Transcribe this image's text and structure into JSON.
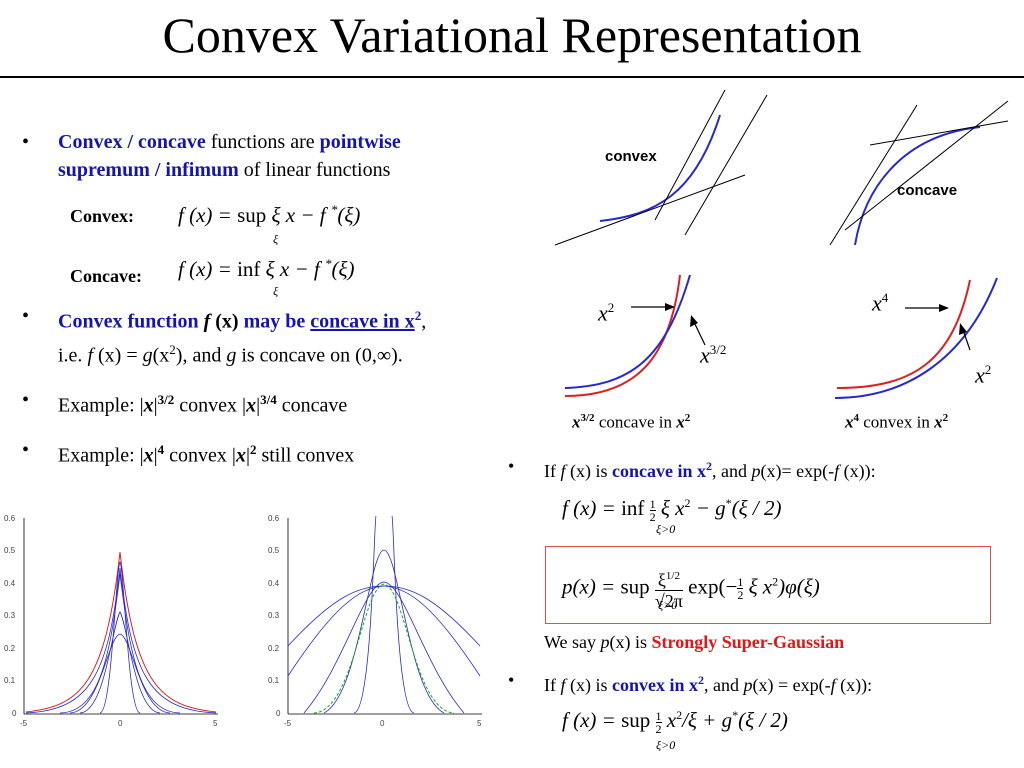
{
  "title": "Convex Variational Representation",
  "bullet1": {
    "part1": "Convex / concave",
    "part2": " functions are ",
    "part3": "pointwise",
    "part4": "supremum / infimum",
    "part5": " of linear functions"
  },
  "eq_convex": {
    "label": "Convex:",
    "lhs": "f (x) = ",
    "op": "sup",
    "sub": "ξ",
    "rhs": " ξ x − f ",
    "star": "*",
    "tail": "(ξ)"
  },
  "eq_concave": {
    "label": "Concave:",
    "lhs": "f (x) = ",
    "op": "inf",
    "sub": "ξ",
    "rhs": " ξ x − f ",
    "star": "*",
    "tail": "(ξ)"
  },
  "bullet2": {
    "a": "Convex function ",
    "b": "f",
    "c": " (x)",
    "d": " may be ",
    "e": "concave in x",
    "e_sup": "2",
    "f": ",",
    "line2_a": "i.e. ",
    "line2_b": "f",
    "line2_c": " (x) = ",
    "line2_d": "g",
    "line2_e": "(x",
    "line2_sup": "2",
    "line2_f": "), and ",
    "line2_g": "g",
    "line2_h": " is concave on (0,∞)."
  },
  "bullet3": {
    "a": "Example: |",
    "b": "x",
    "c": "|",
    "sup1": "3/2",
    "d": " convex |",
    "e": "x",
    "f": "|",
    "sup2": "3/4",
    "g": " concave"
  },
  "bullet4": {
    "a": "Example: |",
    "b": "x",
    "c": "|",
    "sup1": "4",
    "d": " convex |",
    "e": "x",
    "f": "|",
    "sup2": "2",
    "g": " still convex"
  },
  "diagram": {
    "convex_label": "convex",
    "concave_label": "concave",
    "x2_left": "x",
    "x2_left_sup": "2",
    "x32": "x",
    "x32_sup": "3/2",
    "x4": "x",
    "x4_sup": "4",
    "x2_right": "x",
    "x2_right_sup": "2",
    "caption_left_a": "x",
    "caption_left_sup": "3/2",
    "caption_left_b": " concave in ",
    "caption_left_c": "x",
    "caption_left_sup2": "2",
    "caption_right_a": "x",
    "caption_right_sup": "4",
    "caption_right_b": " convex in ",
    "caption_right_c": "x",
    "caption_right_sup2": "2"
  },
  "right_bullet1": {
    "a": "If ",
    "b": "f",
    "c": " (x) is ",
    "d": "concave in x",
    "d_sup": "2",
    "e": ", and ",
    "f": "p",
    "g": "(x)= exp(-",
    "h": "f",
    "i": " (x)):"
  },
  "eq_r1": {
    "lhs": "f (x) = ",
    "op": "inf",
    "sub": "ξ>0",
    "frac_n": "1",
    "frac_d": "2",
    "mid": " ξ x",
    "sup": "2",
    "rest": " − g",
    "star": "*",
    "tail": "(ξ / 2)"
  },
  "eq_r2": {
    "lhs": "p(x) = ",
    "op": "sup",
    "sub": "ξ>0",
    "num": "ξ",
    "num_sup": "1/2",
    "den": "√2π",
    "mid": " exp(−",
    "frac_n": "1",
    "frac_d": "2",
    "rest": " ξ x",
    "sup": "2",
    "tail": ")φ(ξ)"
  },
  "strongly": {
    "a": "We say ",
    "b": "p",
    "c": "(x) is ",
    "d": "Strongly Super-Gaussian"
  },
  "right_bullet2": {
    "a": "If ",
    "b": "f",
    "c": " (x) is ",
    "d": "convex in x",
    "d_sup": "2",
    "e": ", and ",
    "f": "p",
    "g": "(x) = exp(-",
    "h": "f",
    "i": " (x)):"
  },
  "eq_r3": {
    "lhs": "f (x) = ",
    "op": "sup",
    "sub": "ξ>0",
    "frac_n": "1",
    "frac_d": "2",
    "mid": " x",
    "sup": "2",
    "rest": "/ξ + g",
    "star": "*",
    "tail": "(ξ / 2)"
  },
  "plots": {
    "left": {
      "yticks": [
        "0.6",
        "0.5",
        "0.4",
        "0.3",
        "0.2",
        "0.1",
        "0"
      ],
      "xticks": [
        "-5",
        "0",
        "5"
      ]
    },
    "right": {
      "yticks": [
        "0.6",
        "0.5",
        "0.4",
        "0.3",
        "0.2",
        "0.1",
        "0"
      ],
      "xticks": [
        "-5",
        "0",
        "5"
      ]
    }
  },
  "colors": {
    "blue_text": "#1414b4",
    "red_text": "#e61414",
    "curve_blue": "#2828d0",
    "curve_red": "#e02020",
    "box": "#e05050"
  }
}
